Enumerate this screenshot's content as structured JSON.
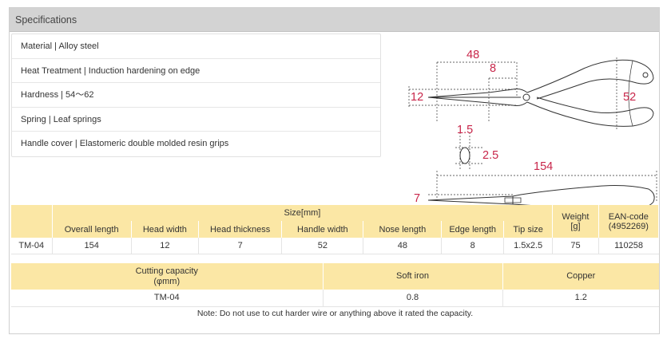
{
  "header": {
    "title": "Specifications"
  },
  "specs": [
    {
      "text": "Material | Alloy steel"
    },
    {
      "text": "Heat Treatment | Induction hardening on edge"
    },
    {
      "text": "Hardness | 54～62"
    },
    {
      "text": "Spring | Leaf springs"
    },
    {
      "text": "Handle cover | Elastomeric double molded resin grips"
    }
  ],
  "drawing": {
    "accent_color": "#c8264a",
    "labels": {
      "nose": "48",
      "edge": "8",
      "head": "12",
      "handle": "52",
      "tip_w": "1.5",
      "tip_h": "2.5",
      "overall": "154",
      "thickness": "7"
    }
  },
  "size_table": {
    "group_header": "Size[mm]",
    "columns": [
      "Overall length",
      "Head width",
      "Head thickness",
      "Handle width",
      "Nose length",
      "Edge length",
      "Tip size"
    ],
    "weight_header": [
      "Weight",
      "[g]"
    ],
    "ean_header": [
      "EAN-code",
      "(4952269)"
    ],
    "row": {
      "model": "TM-04",
      "values": [
        "154",
        "12",
        "7",
        "52",
        "48",
        "8",
        "1.5x2.5"
      ],
      "weight": "75",
      "ean": "110258"
    }
  },
  "cutting_table": {
    "header": [
      "Cutting capacity",
      "(φmm)"
    ],
    "columns": [
      "Soft iron",
      "Copper"
    ],
    "row": {
      "model": "TM-04",
      "values": [
        "0.8",
        "1.2"
      ]
    }
  },
  "note": "Note: Do not use to cut harder wire or anything above it rated the capacity."
}
